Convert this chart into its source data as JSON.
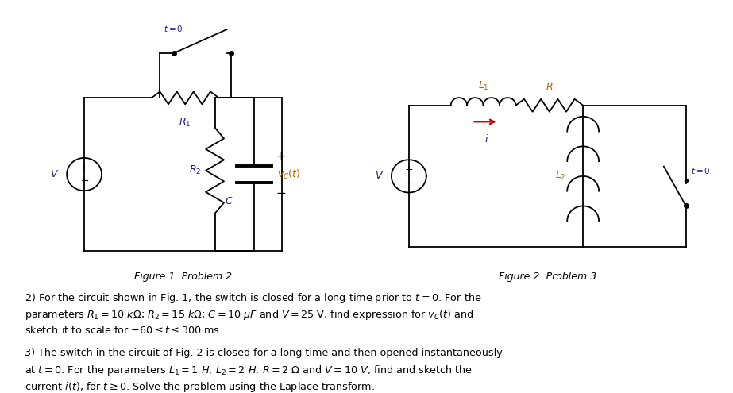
{
  "bg_color": "#ffffff",
  "text_color": "#000000",
  "blue_color": "#1a1a8c",
  "red_color": "#cc0000",
  "orange_color": "#b86000",
  "fig_width": 9.23,
  "fig_height": 4.95,
  "fig1_caption": "Figure 1: Problem 2",
  "fig2_caption": "Figure 2: Problem 3",
  "problem2_line1": "2) For the circuit shown in Fig. 1, the switch is closed for a long time prior to $t = 0$. For the",
  "problem2_line2": "parameters $R_1 = 10\\ k\\Omega$; $R_2 = 15\\ k\\Omega$; $C = 10\\ \\mu F$ and $V = 25$ V, find expression for $v_C(t)$ and",
  "problem2_line3": "sketch it to scale for $-60 \\leq t \\leq 300$ ms.",
  "problem3_line1": "3) The switch in the circuit of Fig. 2 is closed for a long time and then opened instantaneously",
  "problem3_line2": "at $t = 0$. For the parameters $L_1 = 1\\ H$; $L_2 = 2\\ H$; $R = 2\\ \\Omega$ and $V = 10\\ V$, find and sketch the",
  "problem3_line3": "current $i(t)$, for $t \\geq 0$. Solve the problem using the Laplace transform."
}
